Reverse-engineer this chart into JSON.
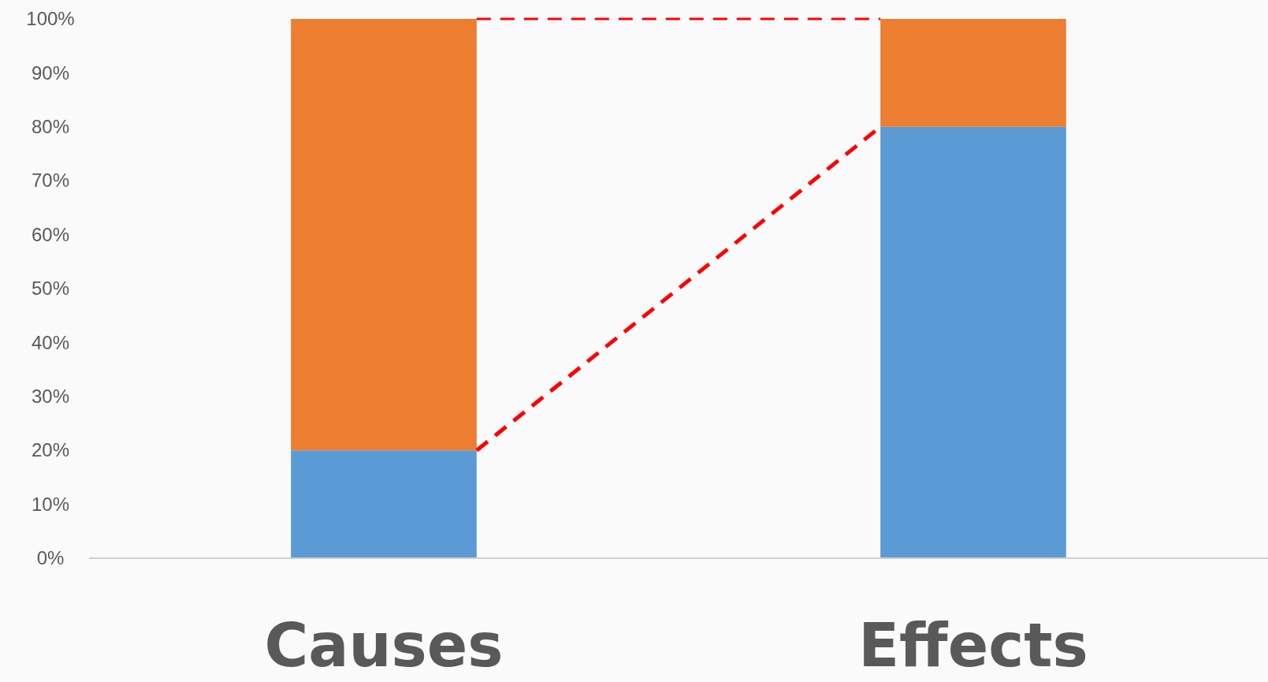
{
  "chart_data": {
    "type": "bar",
    "stacked": true,
    "categories": [
      "Causes",
      "Effects"
    ],
    "ylim": [
      0,
      100
    ],
    "yticks": [
      {
        "value": 0,
        "label": "0%"
      },
      {
        "value": 10,
        "label": "10%"
      },
      {
        "value": 20,
        "label": "20%"
      },
      {
        "value": 30,
        "label": "30%"
      },
      {
        "value": 40,
        "label": "40%"
      },
      {
        "value": 50,
        "label": "50%"
      },
      {
        "value": 60,
        "label": "60%"
      },
      {
        "value": 70,
        "label": "70%"
      },
      {
        "value": 80,
        "label": "80%"
      },
      {
        "value": 90,
        "label": "90%"
      },
      {
        "value": 100,
        "label": "100%"
      }
    ],
    "grid": false,
    "series": [
      {
        "color": "#5b9bd5",
        "values": [
          20,
          80
        ]
      },
      {
        "color": "#ed7d31",
        "values": [
          80,
          20
        ]
      }
    ]
  }
}
